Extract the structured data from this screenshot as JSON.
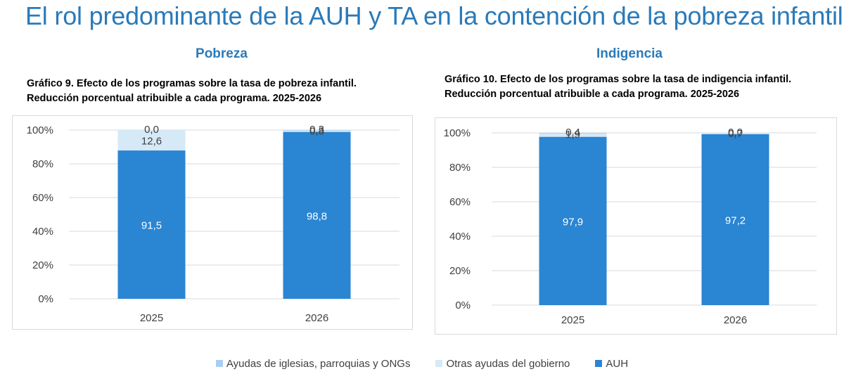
{
  "page_title": "El rol predominante de la AUH y TA en la contención de la pobreza infantil",
  "sections": {
    "left_heading": "Pobreza",
    "right_heading": "Indigencia"
  },
  "colors": {
    "title": "#2a7ab9",
    "auh": "#2a85d3",
    "otras": "#d6e9f7",
    "iglesias": "#a9cff0",
    "gridline": "#d9d9d9",
    "tick_text": "#404040"
  },
  "legend": [
    {
      "label": "Ayudas de iglesias, parroquias y ONGs",
      "color": "#a9cff0"
    },
    {
      "label": "Otras ayudas del gobierno",
      "color": "#d6e9f7"
    },
    {
      "label": "AUH",
      "color": "#2a85d3"
    }
  ],
  "chart_data": [
    {
      "type": "bar",
      "stacked": "percent",
      "title": "Gráfico 9. Efecto de los programas sobre la tasa de pobreza infantil.",
      "subtitle": "Reducción porcentual atribuible a cada programa. 2025-2026",
      "categories": [
        "2025",
        "2026"
      ],
      "yticks": [
        "0%",
        "20%",
        "40%",
        "60%",
        "80%",
        "100%"
      ],
      "ylim": [
        0,
        100
      ],
      "grid": true,
      "series": [
        {
          "name": "AUH",
          "values": [
            91.5,
            98.8
          ],
          "labels": [
            "91,5",
            "98,8"
          ]
        },
        {
          "name": "Otras ayudas del gobierno",
          "values": [
            12.6,
            0.8
          ],
          "labels": [
            "12,6",
            "0,8"
          ]
        },
        {
          "name": "Ayudas de iglesias, parroquias y ONGs",
          "values": [
            0.0,
            0.3
          ],
          "labels": [
            "0,0",
            "0,3"
          ]
        }
      ]
    },
    {
      "type": "bar",
      "stacked": "percent",
      "title": "Gráfico 10. Efecto de los programas sobre la tasa de indigencia infantil.",
      "subtitle": "Reducción porcentual atribuible a cada programa. 2025-2026",
      "categories": [
        "2025",
        "2026"
      ],
      "yticks": [
        "0%",
        "20%",
        "40%",
        "60%",
        "80%",
        "100%"
      ],
      "ylim": [
        0,
        100
      ],
      "grid": true,
      "series": [
        {
          "name": "AUH",
          "values": [
            97.9,
            97.2
          ],
          "labels": [
            "97,9",
            "97,2"
          ]
        },
        {
          "name": "Otras ayudas del gobierno",
          "values": [
            1.9,
            0.7
          ],
          "labels": [
            "1,9",
            "0,7"
          ]
        },
        {
          "name": "Ayudas de iglesias, parroquias y ONGs",
          "values": [
            0.4,
            0.0
          ],
          "labels": [
            "0,4",
            "0,0"
          ]
        }
      ]
    }
  ]
}
